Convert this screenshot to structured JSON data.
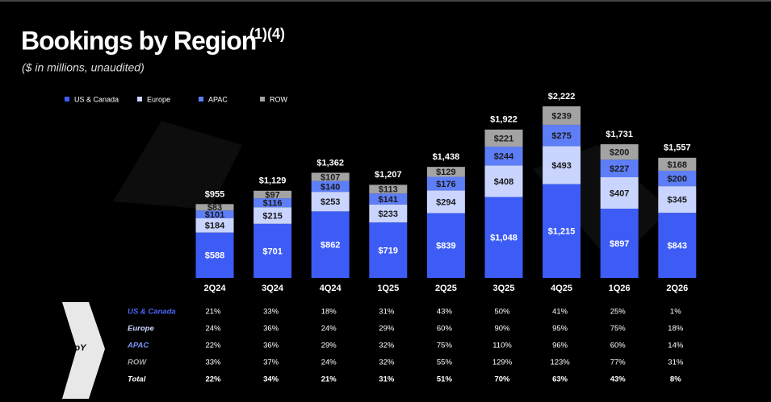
{
  "chart_data": {
    "type": "stacked-bar",
    "title": "Bookings by Region",
    "title_note": "(1)(4)",
    "subtitle": "($ in millions, unaudited)",
    "categories": [
      "2Q24",
      "3Q24",
      "4Q24",
      "1Q25",
      "2Q25",
      "3Q25",
      "4Q25",
      "1Q26",
      "2Q26"
    ],
    "series": [
      {
        "name": "US & Canada",
        "color": "#3d5cf5",
        "values": [
          588,
          701,
          862,
          719,
          839,
          1048,
          1215,
          897,
          843
        ],
        "value_labels": [
          "$588",
          "$701",
          "$862",
          "$719",
          "$839",
          "$1,048",
          "$1,215",
          "$897",
          "$843"
        ]
      },
      {
        "name": "Europe",
        "color": "#c9d4ff",
        "values": [
          184,
          215,
          253,
          233,
          294,
          408,
          493,
          407,
          345
        ],
        "value_labels": [
          "$184",
          "$215",
          "$253",
          "$233",
          "$294",
          "$408",
          "$493",
          "$407",
          "$345"
        ]
      },
      {
        "name": "APAC",
        "color": "#5e7ef8",
        "values": [
          101,
          116,
          140,
          141,
          176,
          244,
          275,
          227,
          200
        ],
        "value_labels": [
          "$101",
          "$116",
          "$140",
          "$141",
          "$176",
          "$244",
          "$275",
          "$227",
          "$200"
        ]
      },
      {
        "name": "ROW",
        "color": "#a3a3a3",
        "values": [
          83,
          97,
          107,
          113,
          129,
          221,
          239,
          200,
          168
        ],
        "value_labels": [
          "$83",
          "$97",
          "$107",
          "$113",
          "$129",
          "$221",
          "$239",
          "$200",
          "$168"
        ]
      }
    ],
    "totals": [
      955,
      1129,
      1362,
      1207,
      1438,
      1922,
      2222,
      1731,
      1557
    ],
    "total_labels": [
      "$955",
      "$1,129",
      "$1,362",
      "$1,207",
      "$1,438",
      "$1,922",
      "$2,222",
      "$1,731",
      "$1,557"
    ],
    "legend": "top-left"
  },
  "table": {
    "header": "YoY",
    "rows": [
      {
        "label": "US & Canada",
        "values": [
          "21%",
          "33%",
          "18%",
          "31%",
          "43%",
          "50%",
          "41%",
          "25%",
          "1%"
        ]
      },
      {
        "label": "Europe",
        "values": [
          "24%",
          "36%",
          "24%",
          "29%",
          "60%",
          "90%",
          "95%",
          "75%",
          "18%"
        ]
      },
      {
        "label": "APAC",
        "values": [
          "22%",
          "36%",
          "29%",
          "32%",
          "75%",
          "110%",
          "96%",
          "60%",
          "14%"
        ]
      },
      {
        "label": "ROW",
        "values": [
          "33%",
          "37%",
          "24%",
          "32%",
          "55%",
          "129%",
          "123%",
          "77%",
          "31%"
        ]
      },
      {
        "label": "Total",
        "values": [
          "22%",
          "34%",
          "21%",
          "31%",
          "51%",
          "70%",
          "63%",
          "43%",
          "8%"
        ]
      }
    ]
  }
}
